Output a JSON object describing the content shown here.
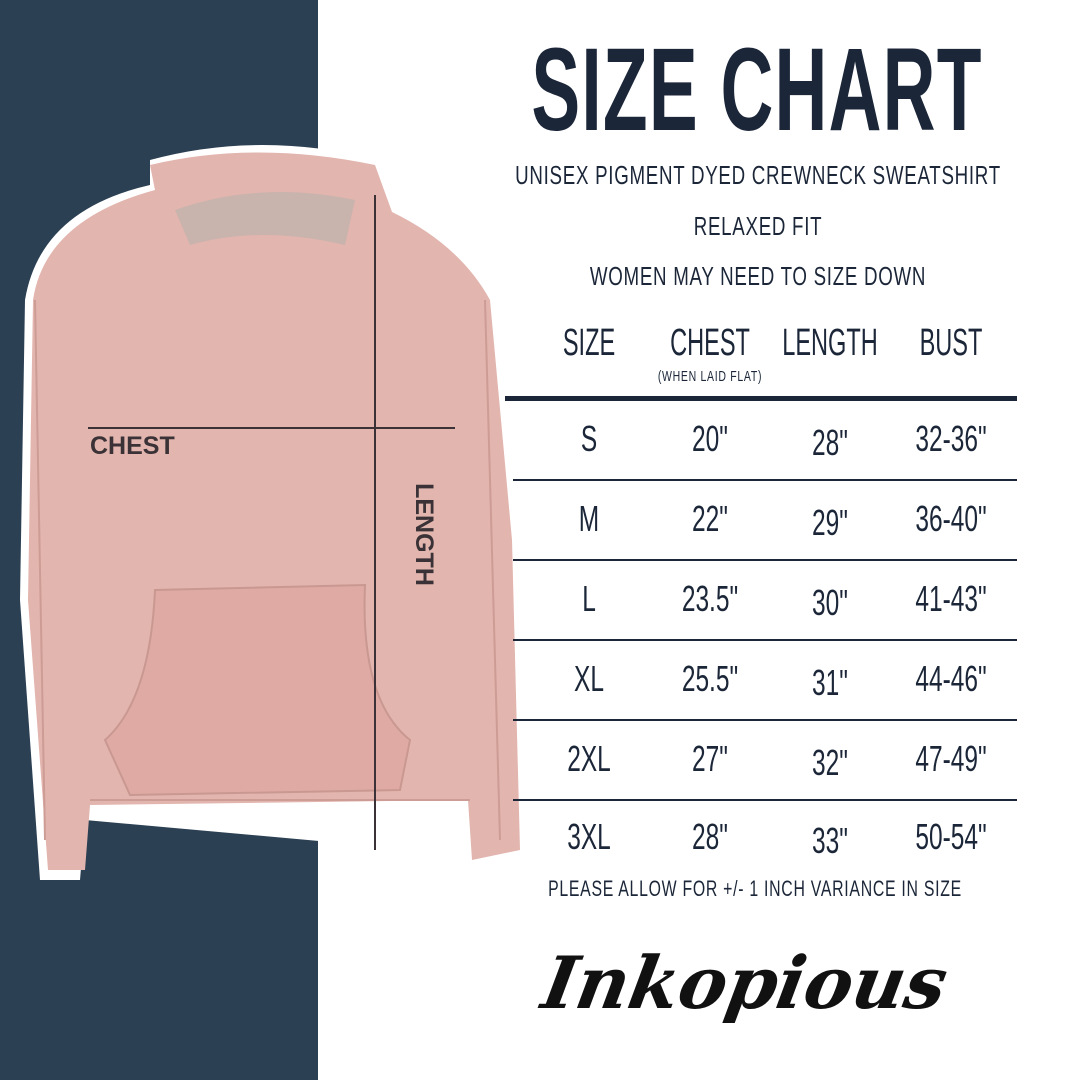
{
  "title": "SIZE CHART",
  "subtitles": [
    "UNISEX PIGMENT DYED CREWNECK SWEATSHIRT",
    "RELAXED FIT",
    "WOMEN MAY NEED TO SIZE DOWN"
  ],
  "headers": {
    "size": "SIZE",
    "chest": "CHEST",
    "chest_note": "(WHEN LAID FLAT)",
    "length": "LENGTH",
    "bust": "BUST"
  },
  "rows": [
    {
      "size": "S",
      "chest": "20\"",
      "length": "28\"",
      "bust": "32-36\""
    },
    {
      "size": "M",
      "chest": "22\"",
      "length": "29\"",
      "bust": "36-40\""
    },
    {
      "size": "L",
      "chest": "23.5\"",
      "length": "30\"",
      "bust": "41-43\""
    },
    {
      "size": "XL",
      "chest": "25.5\"",
      "length": "31\"",
      "bust": "44-46\""
    },
    {
      "size": "2XL",
      "chest": "27\"",
      "length": "32\"",
      "bust": "47-49\""
    },
    {
      "size": "3XL",
      "chest": "28\"",
      "length": "33\"",
      "bust": "50-54\""
    }
  ],
  "footnote": "PLEASE ALLOW FOR +/- 1 INCH VARIANCE IN SIZE",
  "brand": "Inkopious",
  "diagram": {
    "chest_label": "CHEST",
    "length_label": "LENGTH"
  },
  "colors": {
    "navy": "#2c4053",
    "text": "#1b2638",
    "hoodie": "#e2b5ae"
  }
}
